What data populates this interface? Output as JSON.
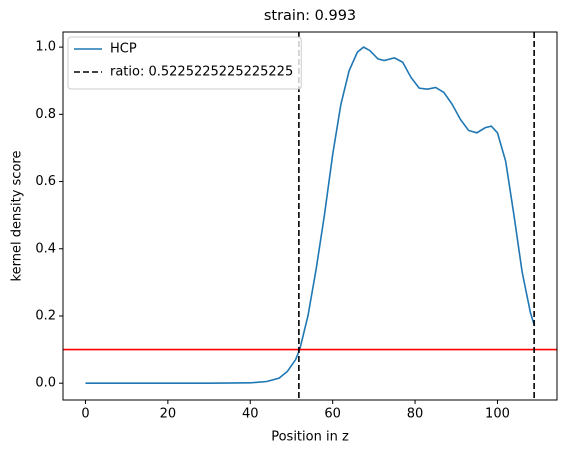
{
  "chart_data": {
    "type": "line",
    "title": "strain: 0.993",
    "xlabel": "Position in z",
    "ylabel": "kernel density score",
    "xlim": [
      -5.45,
      114.45
    ],
    "ylim": [
      -0.05,
      1.045
    ],
    "xticks": [
      0,
      20,
      40,
      60,
      80,
      100
    ],
    "yticks": [
      {
        "value": 0,
        "label": "0.0"
      },
      {
        "value": 0.2,
        "label": "0.2"
      },
      {
        "value": 0.4,
        "label": "0.4"
      },
      {
        "value": 0.6,
        "label": "0.6"
      },
      {
        "value": 0.8,
        "label": "0.8"
      },
      {
        "value": 1,
        "label": "1.0"
      }
    ],
    "legend": "upper left",
    "series": [
      {
        "name": "HCP",
        "color": "#1f77b4",
        "x": [
          0,
          10,
          20,
          30,
          40,
          44,
          47,
          49,
          51,
          52,
          54,
          56,
          58,
          60,
          62,
          64,
          66,
          67.5,
          69,
          71,
          72.5,
          75,
          77,
          79,
          81,
          83,
          85,
          87,
          89,
          91,
          93,
          95,
          97,
          98.5,
          100,
          102,
          104,
          106,
          108,
          109
        ],
        "values": [
          0,
          0,
          0,
          0,
          0.001,
          0.005,
          0.015,
          0.035,
          0.07,
          0.1,
          0.2,
          0.34,
          0.5,
          0.68,
          0.83,
          0.93,
          0.985,
          1.0,
          0.99,
          0.965,
          0.96,
          0.968,
          0.955,
          0.91,
          0.878,
          0.875,
          0.88,
          0.865,
          0.83,
          0.785,
          0.752,
          0.745,
          0.76,
          0.765,
          0.745,
          0.66,
          0.5,
          0.33,
          0.21,
          0.17
        ]
      }
    ],
    "vlines": {
      "name": "ratio: 0.5225225225225225",
      "color": "#000000",
      "x": [
        51.8,
        108.9
      ]
    },
    "hline": {
      "color": "#ff0000",
      "y": 0.1
    }
  }
}
